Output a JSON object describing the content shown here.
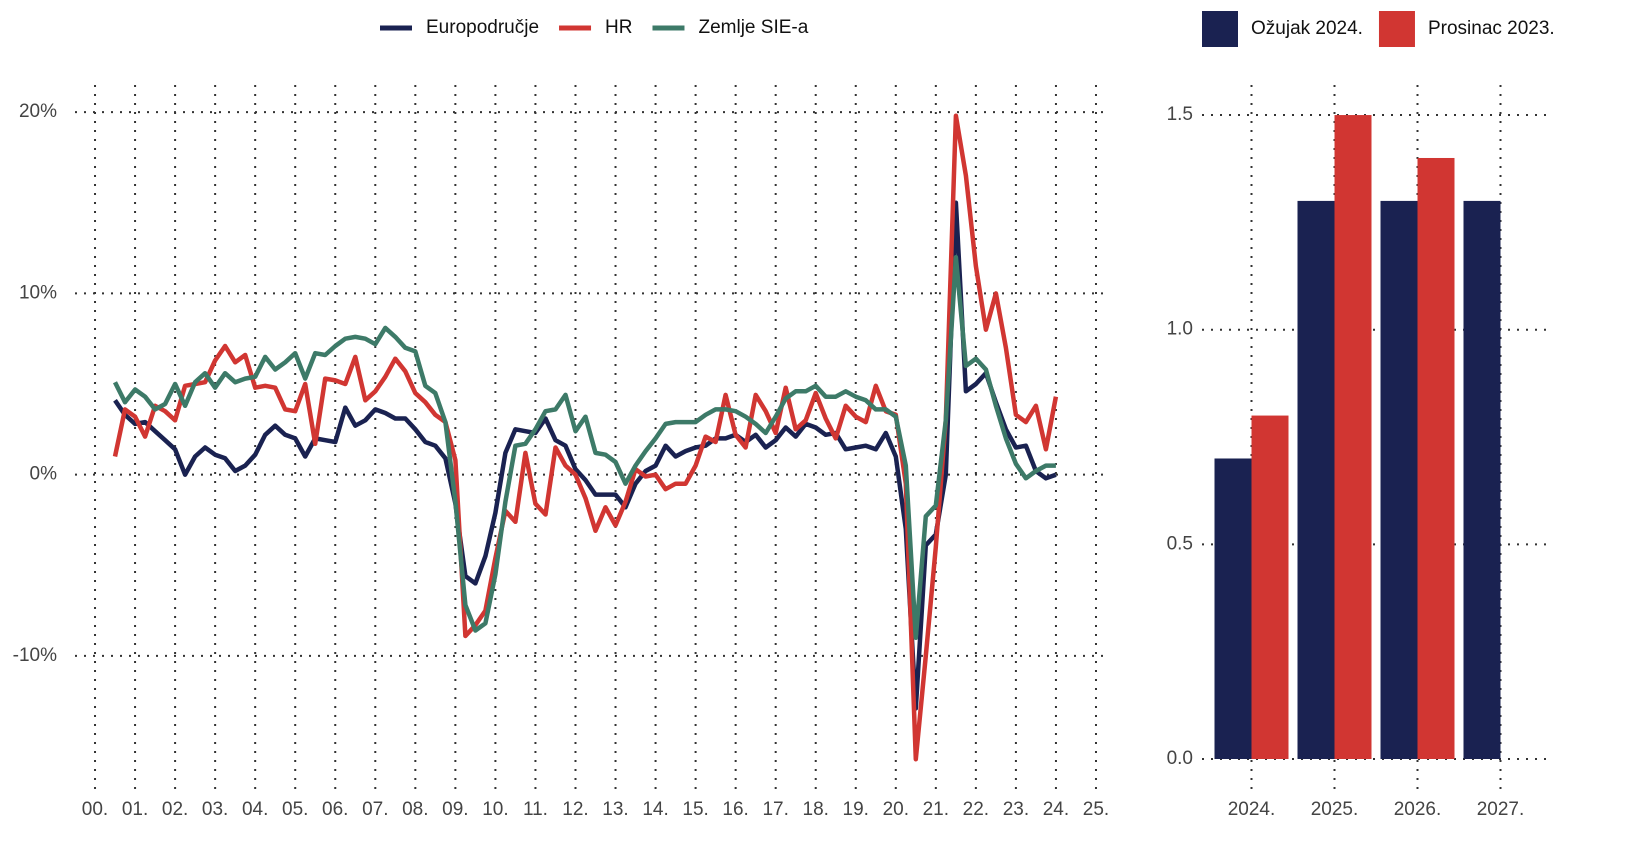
{
  "chart_data": [
    {
      "type": "line",
      "xlim": [
        1999.5,
        2025.3
      ],
      "ylim": [
        -17.4,
        21.5
      ],
      "xticks": [
        {
          "value": 2000,
          "label": "00."
        },
        {
          "value": 2001,
          "label": "01."
        },
        {
          "value": 2002,
          "label": "02."
        },
        {
          "value": 2003,
          "label": "03."
        },
        {
          "value": 2004,
          "label": "04."
        },
        {
          "value": 2005,
          "label": "05."
        },
        {
          "value": 2006,
          "label": "06."
        },
        {
          "value": 2007,
          "label": "07."
        },
        {
          "value": 2008,
          "label": "08."
        },
        {
          "value": 2009,
          "label": "09."
        },
        {
          "value": 2010,
          "label": "10."
        },
        {
          "value": 2011,
          "label": "11."
        },
        {
          "value": 2012,
          "label": "12."
        },
        {
          "value": 2013,
          "label": "13."
        },
        {
          "value": 2014,
          "label": "14."
        },
        {
          "value": 2015,
          "label": "15."
        },
        {
          "value": 2016,
          "label": "16."
        },
        {
          "value": 2017,
          "label": "17."
        },
        {
          "value": 2018,
          "label": "18."
        },
        {
          "value": 2019,
          "label": "19."
        },
        {
          "value": 2020,
          "label": "20."
        },
        {
          "value": 2021,
          "label": "21."
        },
        {
          "value": 2022,
          "label": "22."
        },
        {
          "value": 2023,
          "label": "23."
        },
        {
          "value": 2024,
          "label": "24."
        },
        {
          "value": 2025,
          "label": "25."
        }
      ],
      "yticks": [
        {
          "value": 20,
          "label": "20%"
        },
        {
          "value": 10,
          "label": "10%"
        },
        {
          "value": 0,
          "label": "0%"
        },
        {
          "value": -10,
          "label": "-10%"
        }
      ],
      "grid": true,
      "x": [
        2000.5,
        2000.75,
        2001,
        2001.25,
        2001.5,
        2001.75,
        2002,
        2002.25,
        2002.5,
        2002.75,
        2003,
        2003.25,
        2003.5,
        2003.75,
        2004,
        2004.25,
        2004.5,
        2004.75,
        2005,
        2005.25,
        2005.5,
        2005.75,
        2006,
        2006.25,
        2006.5,
        2006.75,
        2007,
        2007.25,
        2007.5,
        2007.75,
        2008,
        2008.25,
        2008.5,
        2008.75,
        2009,
        2009.25,
        2009.5,
        2009.75,
        2010,
        2010.25,
        2010.5,
        2010.75,
        2011,
        2011.25,
        2011.5,
        2011.75,
        2012,
        2012.25,
        2012.5,
        2012.75,
        2013,
        2013.25,
        2013.5,
        2013.75,
        2014,
        2014.25,
        2014.5,
        2014.75,
        2015,
        2015.25,
        2015.5,
        2015.75,
        2016,
        2016.25,
        2016.5,
        2016.75,
        2017,
        2017.25,
        2017.5,
        2017.75,
        2018,
        2018.25,
        2018.5,
        2018.75,
        2019,
        2019.25,
        2019.5,
        2019.75,
        2020,
        2020.25,
        2020.5,
        2020.75,
        2021,
        2021.25,
        2021.5,
        2021.75,
        2022,
        2022.25,
        2022.5,
        2022.75,
        2023,
        2023.25,
        2023.5,
        2023.75,
        2024
      ],
      "series": [
        {
          "name": "Europodručje",
          "color": "#1a2251",
          "values": [
            4.1,
            3.3,
            2.8,
            2.9,
            2.4,
            1.9,
            1.4,
            0.0,
            1.0,
            1.5,
            1.1,
            0.9,
            0.2,
            0.5,
            1.1,
            2.2,
            2.7,
            2.2,
            2.0,
            1.0,
            2.0,
            1.9,
            1.8,
            3.7,
            2.7,
            3.0,
            3.6,
            3.4,
            3.1,
            3.1,
            2.5,
            1.8,
            1.6,
            0.9,
            -1.6,
            -5.6,
            -6.0,
            -4.5,
            -2.1,
            1.2,
            2.5,
            2.4,
            2.3,
            3.1,
            1.9,
            1.6,
            0.3,
            -0.3,
            -1.1,
            -1.1,
            -1.1,
            -1.8,
            -0.5,
            0.2,
            0.5,
            1.6,
            1.0,
            1.3,
            1.5,
            1.6,
            2.0,
            2.0,
            2.2,
            1.8,
            2.2,
            1.5,
            1.9,
            2.6,
            2.1,
            2.8,
            2.6,
            2.2,
            2.3,
            1.4,
            1.5,
            1.6,
            1.4,
            2.3,
            1.0,
            -3.0,
            -12.9,
            -3.9,
            -3.3,
            0.0,
            15.0,
            4.6,
            5.0,
            5.6,
            4.0,
            2.5,
            1.5,
            1.6,
            0.2,
            -0.2,
            0.0
          ]
        },
        {
          "name": "HR",
          "color": "#d13632",
          "values": [
            1.0,
            3.6,
            3.2,
            2.1,
            3.8,
            3.5,
            3.0,
            4.9,
            5.0,
            5.1,
            6.3,
            7.1,
            6.2,
            6.6,
            4.8,
            4.9,
            4.8,
            3.6,
            3.5,
            5.0,
            1.7,
            5.3,
            5.2,
            5.0,
            6.5,
            4.1,
            4.6,
            5.4,
            6.4,
            5.7,
            4.5,
            4.0,
            3.3,
            2.9,
            0.8,
            -8.9,
            -8.3,
            -7.5,
            -4.6,
            -2.0,
            -2.6,
            1.2,
            -1.6,
            -2.2,
            1.5,
            0.5,
            0.0,
            -1.3,
            -3.1,
            -1.8,
            -2.8,
            -1.5,
            0.3,
            -0.1,
            0.0,
            -0.8,
            -0.5,
            -0.5,
            0.5,
            2.1,
            1.8,
            4.4,
            2.2,
            1.5,
            4.4,
            3.5,
            2.3,
            4.8,
            2.5,
            3.0,
            4.5,
            3.1,
            2.0,
            3.8,
            3.2,
            2.9,
            4.9,
            3.5,
            3.3,
            -0.5,
            -15.7,
            -10.0,
            -4.0,
            3.0,
            19.8,
            16.5,
            11.5,
            8.0,
            10.0,
            7.0,
            3.3,
            2.9,
            3.8,
            1.4,
            4.3
          ]
        },
        {
          "name": "Zemlje SIE-a",
          "color": "#3d7a68",
          "values": [
            5.1,
            4.0,
            4.7,
            4.3,
            3.6,
            3.9,
            5.0,
            3.8,
            5.1,
            5.6,
            4.8,
            5.6,
            5.1,
            5.3,
            5.4,
            6.5,
            5.8,
            6.2,
            6.7,
            5.3,
            6.7,
            6.6,
            7.1,
            7.5,
            7.6,
            7.5,
            7.2,
            8.1,
            7.6,
            7.0,
            6.8,
            4.9,
            4.5,
            2.9,
            -1.5,
            -7.2,
            -8.6,
            -8.2,
            -5.5,
            -1.5,
            1.6,
            1.7,
            2.5,
            3.5,
            3.6,
            4.4,
            2.4,
            3.2,
            1.2,
            1.1,
            0.7,
            -0.5,
            0.5,
            1.3,
            2.0,
            2.8,
            2.9,
            2.9,
            2.9,
            3.3,
            3.6,
            3.6,
            3.5,
            3.2,
            2.8,
            2.3,
            3.2,
            4.2,
            4.6,
            4.6,
            4.9,
            4.3,
            4.3,
            4.6,
            4.3,
            4.1,
            3.6,
            3.6,
            3.2,
            0.5,
            -9.0,
            -2.3,
            -1.7,
            3.0,
            12.0,
            6.0,
            6.4,
            5.8,
            3.8,
            2.0,
            0.6,
            -0.2,
            0.2,
            0.5,
            0.5
          ]
        }
      ]
    },
    {
      "type": "bar",
      "categories": [
        "2024.",
        "2025.",
        "2026.",
        "2027."
      ],
      "ylim": [
        0,
        1.57
      ],
      "yticks": [
        {
          "value": 0,
          "label": "0.0"
        },
        0.5,
        {
          "value": 1,
          "label": "1.0"
        },
        1.5
      ],
      "grid": true,
      "series": [
        {
          "name": "Ožujak 2024.",
          "color": "#1a2251",
          "values": [
            0.7,
            1.3,
            1.3,
            1.3
          ]
        },
        {
          "name": "Prosinac 2023.",
          "color": "#d13632",
          "values": [
            0.8,
            1.5,
            1.4,
            null
          ]
        }
      ]
    }
  ]
}
